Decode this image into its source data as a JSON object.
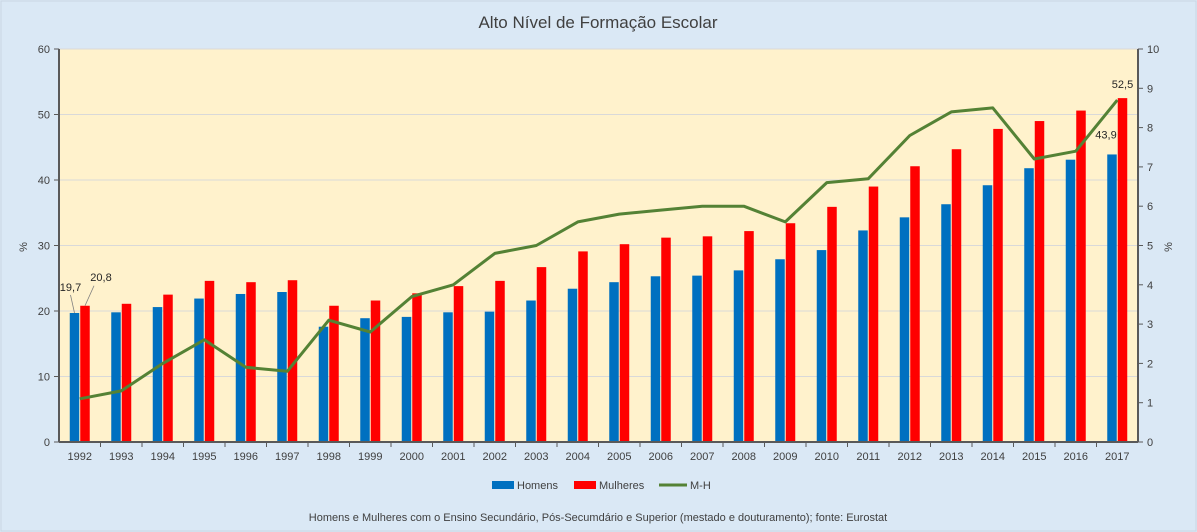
{
  "chart_data": {
    "type": "bar",
    "title": "Alto Nível de Formação Escolar",
    "ylabel": "%",
    "y2label": "%",
    "ylim": [
      0,
      60
    ],
    "y2lim": [
      0,
      10
    ],
    "yticks": [
      "0",
      "10",
      "20",
      "30",
      "40",
      "50",
      "60"
    ],
    "y2ticks": [
      "0",
      "1",
      "2",
      "3",
      "4",
      "5",
      "6",
      "7",
      "8",
      "9",
      "10"
    ],
    "categories": [
      "1992",
      "1993",
      "1994",
      "1995",
      "1996",
      "1997",
      "1998",
      "1999",
      "2000",
      "2001",
      "2002",
      "2003",
      "2004",
      "2005",
      "2006",
      "2007",
      "2008",
      "2009",
      "2010",
      "2011",
      "2012",
      "2013",
      "2014",
      "2015",
      "2016",
      "2017"
    ],
    "series": [
      {
        "name": "Homens",
        "type": "bar",
        "color": "#0070c0",
        "values": [
          19.7,
          19.8,
          20.6,
          21.9,
          22.6,
          22.9,
          17.6,
          18.9,
          19.1,
          19.8,
          19.9,
          21.6,
          23.4,
          24.4,
          25.3,
          25.4,
          26.2,
          27.9,
          29.3,
          32.3,
          34.3,
          36.3,
          39.2,
          41.8,
          43.1,
          43.9
        ]
      },
      {
        "name": "Mulheres",
        "type": "bar",
        "color": "#ff0000",
        "values": [
          20.8,
          21.1,
          22.5,
          24.6,
          24.4,
          24.7,
          20.8,
          21.6,
          22.7,
          23.8,
          24.6,
          26.7,
          29.1,
          30.2,
          31.2,
          31.4,
          32.2,
          33.4,
          35.9,
          39.0,
          42.1,
          44.7,
          47.8,
          49.0,
          50.6,
          52.5
        ]
      },
      {
        "name": "M-H",
        "type": "line",
        "axis": "secondary",
        "color": "#548235",
        "values": [
          1.1,
          1.3,
          2.0,
          2.6,
          1.9,
          1.8,
          3.1,
          2.8,
          3.7,
          4.0,
          4.8,
          5.0,
          5.6,
          5.8,
          5.9,
          6.0,
          6.0,
          5.6,
          6.6,
          6.7,
          7.8,
          8.4,
          8.5,
          7.2,
          7.4,
          8.7
        ]
      }
    ],
    "data_labels": [
      {
        "series": 0,
        "index": 0,
        "text": "19,7"
      },
      {
        "series": 1,
        "index": 0,
        "text": "20,8"
      },
      {
        "series": 0,
        "index": 25,
        "text": "43,9"
      },
      {
        "series": 1,
        "index": 25,
        "text": "52,5"
      }
    ],
    "legend_position": "bottom",
    "grid": true,
    "plot_background": "#fff2cc",
    "footnote": "Homens e Mulheres com o Ensino Secundário, Pós-Secumdário e Superior (mestado e douturamento);  fonte: Eurostat"
  }
}
